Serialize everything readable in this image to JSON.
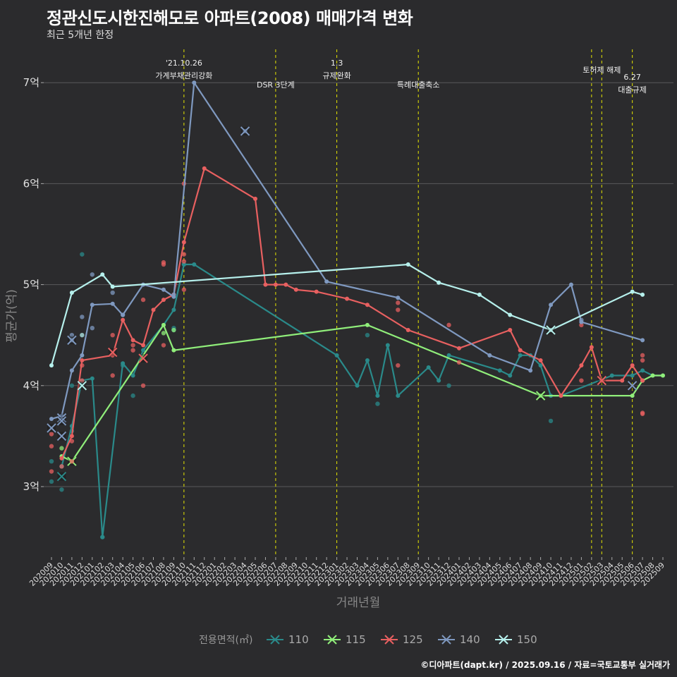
{
  "title": "정관신도시한진해모로 아파트(2008) 매매가격 변화",
  "subtitle": "최근 5개년 한정",
  "caption": "©디아파트(dapt.kr) / 2025.09.16 / 자료=국토교통부 실거래가",
  "colors": {
    "background": "#2b2b2d",
    "grid": "#5a5a5c",
    "event_line": "#e6e600",
    "s110": "#2a8a8a",
    "s115": "#90ee7a",
    "s125": "#e86060",
    "s140": "#7f99c0",
    "s150": "#b6f0ec"
  },
  "chart_data": {
    "type": "line",
    "xlabel": "거래년월",
    "ylabel": "평균가(억)",
    "ylim": [
      2.3,
      7.3
    ],
    "yticks": [
      3,
      4,
      5,
      6,
      7
    ],
    "ytick_labels": [
      "3억",
      "4억",
      "5억",
      "6억",
      "7억"
    ],
    "x_labels": [
      "202009",
      "202010",
      "202011",
      "202012",
      "202101",
      "202102",
      "202103",
      "202104",
      "202105",
      "202106",
      "202107",
      "202108",
      "202109",
      "202110",
      "202111",
      "202112",
      "202201",
      "202202",
      "202203",
      "202204",
      "202205",
      "202206",
      "202207",
      "202208",
      "202209",
      "202210",
      "202211",
      "202212",
      "202301",
      "202302",
      "202303",
      "202304",
      "202305",
      "202306",
      "202307",
      "202308",
      "202309",
      "202310",
      "202311",
      "202312",
      "202401",
      "202402",
      "202403",
      "202404",
      "202405",
      "202406",
      "202407",
      "202408",
      "202409",
      "202410",
      "202411",
      "202412",
      "202501",
      "202502",
      "202503",
      "202504",
      "202505",
      "202506",
      "202507",
      "202508",
      "202509"
    ],
    "legend_title": "전용면적(㎡)",
    "legend_position": "bottom",
    "events": [
      {
        "x": "202110",
        "label": "'21.10.26\n가계부채관리강화"
      },
      {
        "x": "202207",
        "label": "DSR 3단계"
      },
      {
        "x": "202301",
        "label": "1.3\n규제완화"
      },
      {
        "x": "202309",
        "label": "특례대출축소"
      },
      {
        "x": "202502",
        "label": ""
      },
      {
        "x": "202503",
        "label": "토허제 해제"
      },
      {
        "x": "202506",
        "label": "6.27\n대출규제"
      }
    ],
    "series": [
      {
        "name": "110",
        "color_key": "s110",
        "line": [
          [
            "202010",
            3.2
          ],
          [
            "202011",
            3.6
          ],
          [
            "202012",
            4.05
          ],
          [
            "202101",
            4.07
          ],
          [
            "202102",
            2.5
          ],
          [
            "202104",
            4.22
          ],
          [
            "202105",
            4.1
          ],
          [
            "202106",
            4.35
          ],
          [
            "202108",
            4.6
          ],
          [
            "202109",
            4.75
          ],
          [
            "202110",
            5.2
          ],
          [
            "202111",
            5.2
          ],
          [
            "202301",
            4.3
          ],
          [
            "202303",
            4.0
          ],
          [
            "202304",
            4.25
          ],
          [
            "202305",
            3.9
          ],
          [
            "202306",
            4.4
          ],
          [
            "202307",
            3.9
          ],
          [
            "202310",
            4.18
          ],
          [
            "202311",
            4.05
          ],
          [
            "202312",
            4.3
          ],
          [
            "202405",
            4.15
          ],
          [
            "202406",
            4.1
          ],
          [
            "202407",
            4.3
          ],
          [
            "202408",
            4.3
          ],
          [
            "202409",
            4.2
          ],
          [
            "202410",
            3.9
          ],
          [
            "202411",
            3.9
          ],
          [
            "202504",
            4.1
          ],
          [
            "202506",
            4.1
          ],
          [
            "202507",
            4.15
          ],
          [
            "202508",
            4.1
          ],
          [
            "202509",
            4.1
          ]
        ],
        "points": [
          [
            "202009",
            3.05
          ],
          [
            "202009",
            3.25
          ],
          [
            "202010",
            2.97
          ],
          [
            "202010",
            3.2
          ],
          [
            "202011",
            3.55
          ],
          [
            "202011",
            4.0
          ],
          [
            "202012",
            5.3
          ],
          [
            "202102",
            2.5
          ],
          [
            "202104",
            4.2
          ],
          [
            "202105",
            3.9
          ],
          [
            "202109",
            4.57
          ],
          [
            "202109",
            4.55
          ],
          [
            "202110",
            5.2
          ],
          [
            "202304",
            4.5
          ],
          [
            "202305",
            3.82
          ],
          [
            "202410",
            3.65
          ],
          [
            "202312",
            4.0
          ]
        ],
        "crosses": [
          [
            "202010",
            3.1
          ]
        ]
      },
      {
        "name": "115",
        "color_key": "s115",
        "line": [
          [
            "202010",
            3.3
          ],
          [
            "202011",
            3.25
          ],
          [
            "202108",
            4.6
          ],
          [
            "202109",
            4.35
          ],
          [
            "202304",
            4.6
          ],
          [
            "202409",
            3.9
          ],
          [
            "202506",
            3.9
          ],
          [
            "202507",
            4.05
          ],
          [
            "202508",
            4.1
          ],
          [
            "202509",
            4.1
          ]
        ],
        "points": [
          [
            "202010",
            3.38
          ],
          [
            "202108",
            4.52
          ],
          [
            "202109",
            4.55
          ],
          [
            "202507",
            4.05
          ]
        ],
        "crosses": [
          [
            "202011",
            3.25
          ],
          [
            "202409",
            3.9
          ]
        ]
      },
      {
        "name": "125",
        "color_key": "s125",
        "line": [
          [
            "202010",
            3.28
          ],
          [
            "202011",
            3.5
          ],
          [
            "202012",
            4.25
          ],
          [
            "202103",
            4.3
          ],
          [
            "202104",
            4.65
          ],
          [
            "202105",
            4.45
          ],
          [
            "202106",
            4.4
          ],
          [
            "202107",
            4.75
          ],
          [
            "202108",
            4.85
          ],
          [
            "202109",
            4.9
          ],
          [
            "202110",
            5.42
          ],
          [
            "202112",
            6.15
          ],
          [
            "202205",
            5.85
          ],
          [
            "202206",
            5.0
          ],
          [
            "202207",
            5.0
          ],
          [
            "202208",
            5.0
          ],
          [
            "202209",
            4.95
          ],
          [
            "202211",
            4.93
          ],
          [
            "202302",
            4.86
          ],
          [
            "202304",
            4.8
          ],
          [
            "202308",
            4.55
          ],
          [
            "202401",
            4.37
          ],
          [
            "202406",
            4.55
          ],
          [
            "202407",
            4.35
          ],
          [
            "202409",
            4.25
          ],
          [
            "202411",
            3.9
          ],
          [
            "202501",
            4.2
          ],
          [
            "202502",
            4.38
          ],
          [
            "202503",
            4.05
          ],
          [
            "202505",
            4.05
          ],
          [
            "202506",
            4.2
          ],
          [
            "202507",
            4.05
          ]
        ],
        "points": [
          [
            "202009",
            3.4
          ],
          [
            "202009",
            3.52
          ],
          [
            "202009",
            3.15
          ],
          [
            "202010",
            3.2
          ],
          [
            "202011",
            3.25
          ],
          [
            "202011",
            3.45
          ],
          [
            "202012",
            4.2
          ],
          [
            "202012",
            4.05
          ],
          [
            "202103",
            4.5
          ],
          [
            "202103",
            4.1
          ],
          [
            "202105",
            4.4
          ],
          [
            "202105",
            4.35
          ],
          [
            "202106",
            4.85
          ],
          [
            "202106",
            4.0
          ],
          [
            "202108",
            5.2
          ],
          [
            "202108",
            5.22
          ],
          [
            "202108",
            4.4
          ],
          [
            "202110",
            5.3
          ],
          [
            "202110",
            5.23
          ],
          [
            "202110",
            4.95
          ],
          [
            "202110",
            6.0
          ],
          [
            "202307",
            4.75
          ],
          [
            "202307",
            4.82
          ],
          [
            "202307",
            4.2
          ],
          [
            "202312",
            4.6
          ],
          [
            "202401",
            4.23
          ],
          [
            "202501",
            4.05
          ],
          [
            "202501",
            4.6
          ],
          [
            "202507",
            4.3
          ],
          [
            "202507",
            4.25
          ],
          [
            "202507",
            3.73
          ],
          [
            "202507",
            3.72
          ]
        ],
        "crosses": [
          [
            "202103",
            4.33
          ],
          [
            "202106",
            4.27
          ],
          [
            "202503",
            4.05
          ]
        ]
      },
      {
        "name": "140",
        "color_key": "s140",
        "line": [
          [
            "202009",
            3.67
          ],
          [
            "202010",
            3.7
          ],
          [
            "202011",
            4.15
          ],
          [
            "202012",
            4.3
          ],
          [
            "202101",
            4.8
          ],
          [
            "202103",
            4.81
          ],
          [
            "202104",
            4.7
          ],
          [
            "202106",
            5.0
          ],
          [
            "202108",
            4.95
          ],
          [
            "202109",
            4.88
          ],
          [
            "202111",
            7.0
          ],
          [
            "202212",
            5.03
          ],
          [
            "202307",
            4.87
          ],
          [
            "202404",
            4.3
          ],
          [
            "202408",
            4.15
          ],
          [
            "202410",
            4.8
          ],
          [
            "202412",
            5.0
          ],
          [
            "202501",
            4.63
          ],
          [
            "202507",
            4.45
          ]
        ],
        "points": [
          [
            "202011",
            4.45
          ],
          [
            "202011",
            4.5
          ],
          [
            "202012",
            4.68
          ],
          [
            "202101",
            5.1
          ],
          [
            "202101",
            4.57
          ],
          [
            "202103",
            4.92
          ],
          [
            "202104",
            4.7
          ],
          [
            "202109",
            4.9
          ],
          [
            "202204",
            6.52
          ],
          [
            "202501",
            4.65
          ]
        ],
        "crosses": [
          [
            "202009",
            3.58
          ],
          [
            "202010",
            3.68
          ],
          [
            "202010",
            3.65
          ],
          [
            "202010",
            3.5
          ],
          [
            "202011",
            4.45
          ],
          [
            "202204",
            6.52
          ],
          [
            "202506",
            4.0
          ]
        ]
      },
      {
        "name": "150",
        "color_key": "s150",
        "line": [
          [
            "202009",
            4.2
          ],
          [
            "202011",
            4.92
          ],
          [
            "202102",
            5.1
          ],
          [
            "202103",
            4.98
          ],
          [
            "202308",
            5.2
          ],
          [
            "202311",
            5.02
          ],
          [
            "202403",
            4.9
          ],
          [
            "202406",
            4.7
          ],
          [
            "202410",
            4.55
          ],
          [
            "202506",
            4.93
          ],
          [
            "202507",
            4.9
          ]
        ],
        "points": [
          [
            "202012",
            4.5
          ]
        ],
        "crosses": [
          [
            "202012",
            4.0
          ],
          [
            "202410",
            4.55
          ]
        ]
      }
    ]
  }
}
